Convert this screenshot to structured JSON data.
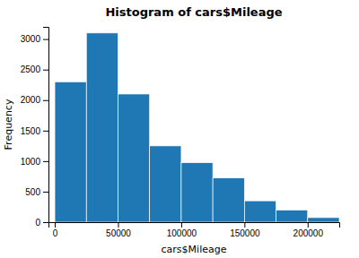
{
  "chart_data": {
    "type": "histogram",
    "title": "Histogram of cars$Mileage",
    "xlabel": "cars$Mileage",
    "ylabel": "Frequency",
    "bins": [
      0,
      25000,
      50000,
      75000,
      100000,
      125000,
      150000,
      175000,
      200000,
      225000
    ],
    "values": [
      2300,
      3100,
      2100,
      1250,
      975,
      725,
      350,
      200,
      75
    ],
    "xlim": [
      -5000,
      225000
    ],
    "ylim": [
      0,
      3200
    ],
    "xticks": [
      0,
      50000,
      100000,
      150000,
      200000
    ],
    "yticks": [
      0,
      500,
      1000,
      1500,
      2000,
      2500,
      3000
    ]
  }
}
